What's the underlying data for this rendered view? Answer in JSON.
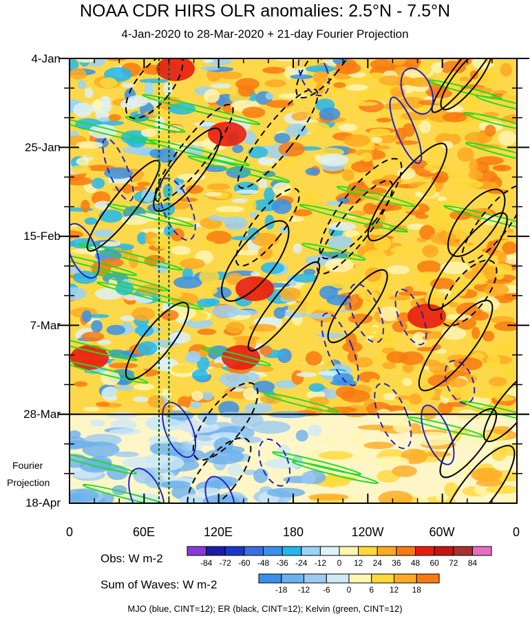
{
  "chart_data": {
    "type": "heatmap",
    "title": "NOAA CDR HIRS OLR anomalies: 2.5°N - 7.5°N",
    "subtitle": "4-Jan-2020 to 28-Mar-2020 + 21-day Fourier Projection",
    "x_ticks": [
      "0",
      "60E",
      "120E",
      "180",
      "120W",
      "60W",
      "0"
    ],
    "x_tick_lon": [
      0,
      60,
      120,
      180,
      240,
      300,
      360
    ],
    "y_ticks": [
      "4-Jan",
      "25-Jan",
      "15-Feb",
      "7-Mar",
      "28-Mar"
    ],
    "y_tick_day": [
      0,
      21,
      42,
      63,
      84
    ],
    "y_end_label": "18-Apr",
    "projection_label_line1": "Fourier",
    "projection_label_line2": "Projection",
    "xlim_lon": [
      0,
      360
    ],
    "ylim_day": [
      0,
      105
    ],
    "observation_end_day": 84,
    "obs_legend": {
      "label": "Obs: W m-2",
      "levels": [
        "-84",
        "-72",
        "-60",
        "-48",
        "-36",
        "-24",
        "-12",
        "0",
        "12",
        "24",
        "36",
        "48",
        "60",
        "72",
        "84"
      ],
      "colors": [
        "#8a3ad8",
        "#1c1ca8",
        "#1c36cc",
        "#3a6ee0",
        "#3a90e8",
        "#22b8ee",
        "#9cd2f4",
        "#ddf1f7",
        "#fff6b4",
        "#fed93a",
        "#fdaa22",
        "#f87a10",
        "#e81d10",
        "#c81414",
        "#a83030",
        "#e86ec0"
      ]
    },
    "wave_legend": {
      "label": "Sum of Waves: W m-2",
      "levels": [
        "-18",
        "-12",
        "-6",
        "0",
        "6",
        "12",
        "18"
      ],
      "colors": [
        "#3a90e8",
        "#6cb0ee",
        "#9ccaf2",
        "#cfe8f6",
        "#fff6b4",
        "#fed93a",
        "#fdaa22",
        "#f87a10"
      ]
    },
    "contours_note": "MJO (blue, CINT=12); ER (black, CINT=12); Kelvin (green, CINT=12)",
    "series": [
      {
        "name": "MJO",
        "color": "#2020c8",
        "cint": 12
      },
      {
        "name": "ER",
        "color": "#000000",
        "cint": 12
      },
      {
        "name": "Kelvin",
        "color": "#22dd22",
        "cint": 12
      }
    ],
    "reference_longitudes": [
      72,
      80
    ]
  }
}
